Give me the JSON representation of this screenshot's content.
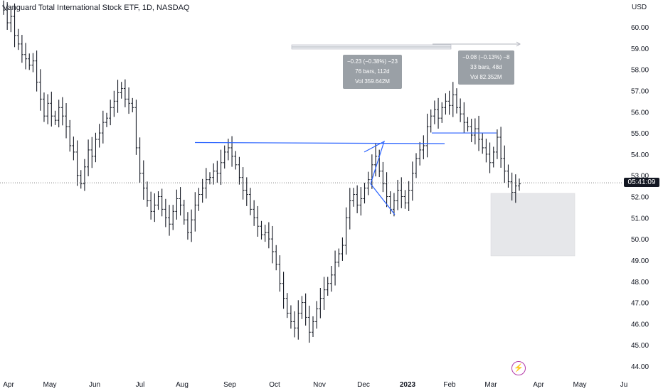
{
  "header": {
    "title": "Vanguard Total International Stock ETF, 1D, NASDAQ",
    "currency": "USD"
  },
  "price_label": "05:41:09",
  "measure_boxes": [
    {
      "line1": "−0.23 (−0.38%) −23",
      "line2": "76 bars, 112d",
      "line3": "Vol 359.642M"
    },
    {
      "line1": "−0.08 (−0.13%) −8",
      "line2": "33 bars, 48d",
      "line3": "Vol 82.352M"
    }
  ],
  "colors": {
    "bar": "#131722",
    "trendline": "#2962ff",
    "arrow": "#b2b5be",
    "zone": "#e6e7ea",
    "bolt": "#b43aa8"
  },
  "icons": {
    "bolt": "lightning-icon"
  },
  "chart_data": {
    "type": "ohlc",
    "title": "Vanguard Total International Stock ETF, 1D, NASDAQ",
    "y_axis": {
      "label": "USD",
      "range": [
        43.8,
        61.2
      ],
      "ticks": [
        "60.00",
        "59.00",
        "58.00",
        "57.00",
        "56.00",
        "55.00",
        "54.00",
        "53.00",
        "52.00",
        "51.00",
        "50.00",
        "49.00",
        "48.00",
        "47.00",
        "46.00",
        "45.00",
        "44.00"
      ]
    },
    "x_axis": {
      "ticks": [
        "Apr",
        "May",
        "Jun",
        "Jul",
        "Aug",
        "Sep",
        "Oct",
        "Nov",
        "Dec",
        "2023",
        "Feb",
        "Mar",
        "Apr",
        "May",
        "Ju"
      ]
    },
    "current_price": 52.65,
    "series": [
      {
        "closes": [
          60.8,
          60.2,
          60.5,
          59.6,
          59.2,
          58.7,
          58.5,
          58.2,
          58.4,
          57.4,
          56.6,
          55.8,
          56.4,
          55.8,
          55.6,
          56.2,
          55.8,
          55.3,
          54.4,
          54.1,
          53.0,
          52.6,
          53.4,
          54.2,
          53.9,
          54.7,
          55.0,
          55.5,
          55.7,
          56.2,
          56.5,
          56.9,
          57.1,
          56.6,
          56.4,
          56.2,
          54.3,
          53.1,
          52.4,
          51.8,
          51.3,
          51.6,
          52.0,
          51.4,
          51.0,
          50.7,
          51.3,
          51.9,
          51.6,
          50.9,
          50.3,
          50.9,
          51.6,
          52.1,
          52.4,
          52.8,
          52.9,
          53.2,
          53.1,
          53.6,
          54.1,
          54.3,
          53.9,
          53.5,
          52.9,
          52.3,
          52.1,
          51.4,
          51.0,
          50.6,
          50.2,
          50.3,
          50.0,
          49.4,
          48.8,
          47.9,
          47.2,
          46.5,
          46.1,
          45.8,
          46.5,
          47.0,
          46.3,
          45.6,
          46.1,
          46.7,
          47.2,
          47.6,
          47.9,
          48.3,
          48.9,
          49.3,
          49.7,
          51.0,
          51.8,
          52.1,
          51.6,
          51.9,
          52.4,
          52.8,
          53.5,
          53.9,
          53.2,
          52.6,
          52.0,
          51.4,
          51.8,
          52.3,
          52.0,
          51.7,
          52.3,
          53.1,
          53.8,
          54.2,
          54.4,
          55.3,
          55.8,
          56.1,
          55.7,
          56.2,
          56.5,
          56.3,
          56.8,
          56.2,
          55.9,
          55.5,
          55.3,
          54.9,
          55.2,
          54.7,
          54.3,
          54.0,
          53.6,
          54.1,
          54.8,
          53.8,
          53.2,
          52.7,
          52.2,
          52.5,
          52.6
        ]
      }
    ],
    "trendlines": 3,
    "measure_tools": 2
  }
}
